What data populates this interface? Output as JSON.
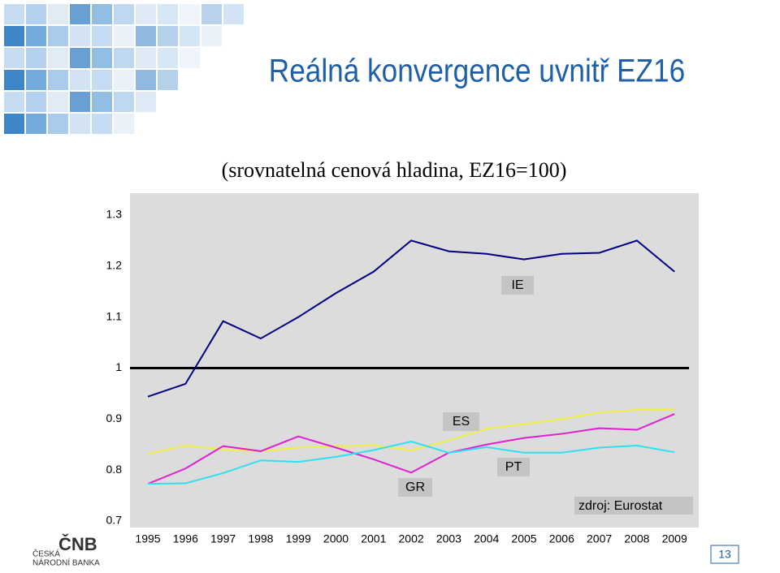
{
  "chart_data": {
    "type": "line",
    "title": "Reálná konvergence uvnitř EZ16",
    "subtitle": "(srovnatelná cenová hladina, EZ16=100)",
    "categories": [
      "1995",
      "1996",
      "1997",
      "1998",
      "1999",
      "2000",
      "2001",
      "2002",
      "2003",
      "2004",
      "2005",
      "2006",
      "2007",
      "2008",
      "2009"
    ],
    "series": [
      {
        "name": "IE",
        "color": "#000080",
        "values": [
          0.944,
          0.969,
          1.092,
          1.058,
          1.1,
          1.147,
          1.189,
          1.25,
          1.229,
          1.224,
          1.213,
          1.224,
          1.226,
          1.25,
          1.189
        ]
      },
      {
        "name": "ES",
        "color": "#f0f040",
        "values": [
          0.832,
          0.848,
          0.84,
          0.837,
          0.844,
          0.847,
          0.848,
          0.839,
          0.858,
          0.881,
          0.89,
          0.9,
          0.913,
          0.918,
          0.919
        ]
      },
      {
        "name": "PT",
        "color": "#e020d0",
        "values": [
          0.773,
          0.803,
          0.847,
          0.837,
          0.866,
          0.844,
          0.821,
          0.795,
          0.834,
          0.85,
          0.863,
          0.871,
          0.882,
          0.879,
          0.91
        ]
      },
      {
        "name": "GR",
        "color": "#30e0f0",
        "values": [
          0.773,
          0.774,
          0.794,
          0.819,
          0.816,
          0.826,
          0.839,
          0.856,
          0.834,
          0.845,
          0.834,
          0.834,
          0.844,
          0.848,
          0.835
        ]
      }
    ],
    "reference_line": 1,
    "ylim": [
      0.7,
      1.3
    ],
    "yticks": [
      0.7,
      0.8,
      0.9,
      1,
      1.1,
      1.2,
      1.3
    ],
    "grid": false,
    "annotation": "zdroj: Eurostat",
    "page_number": "13",
    "logo": {
      "mark": "ČNB",
      "line1": "ČESKÁ",
      "line2": "NÁRODNÍ BANKA"
    }
  }
}
